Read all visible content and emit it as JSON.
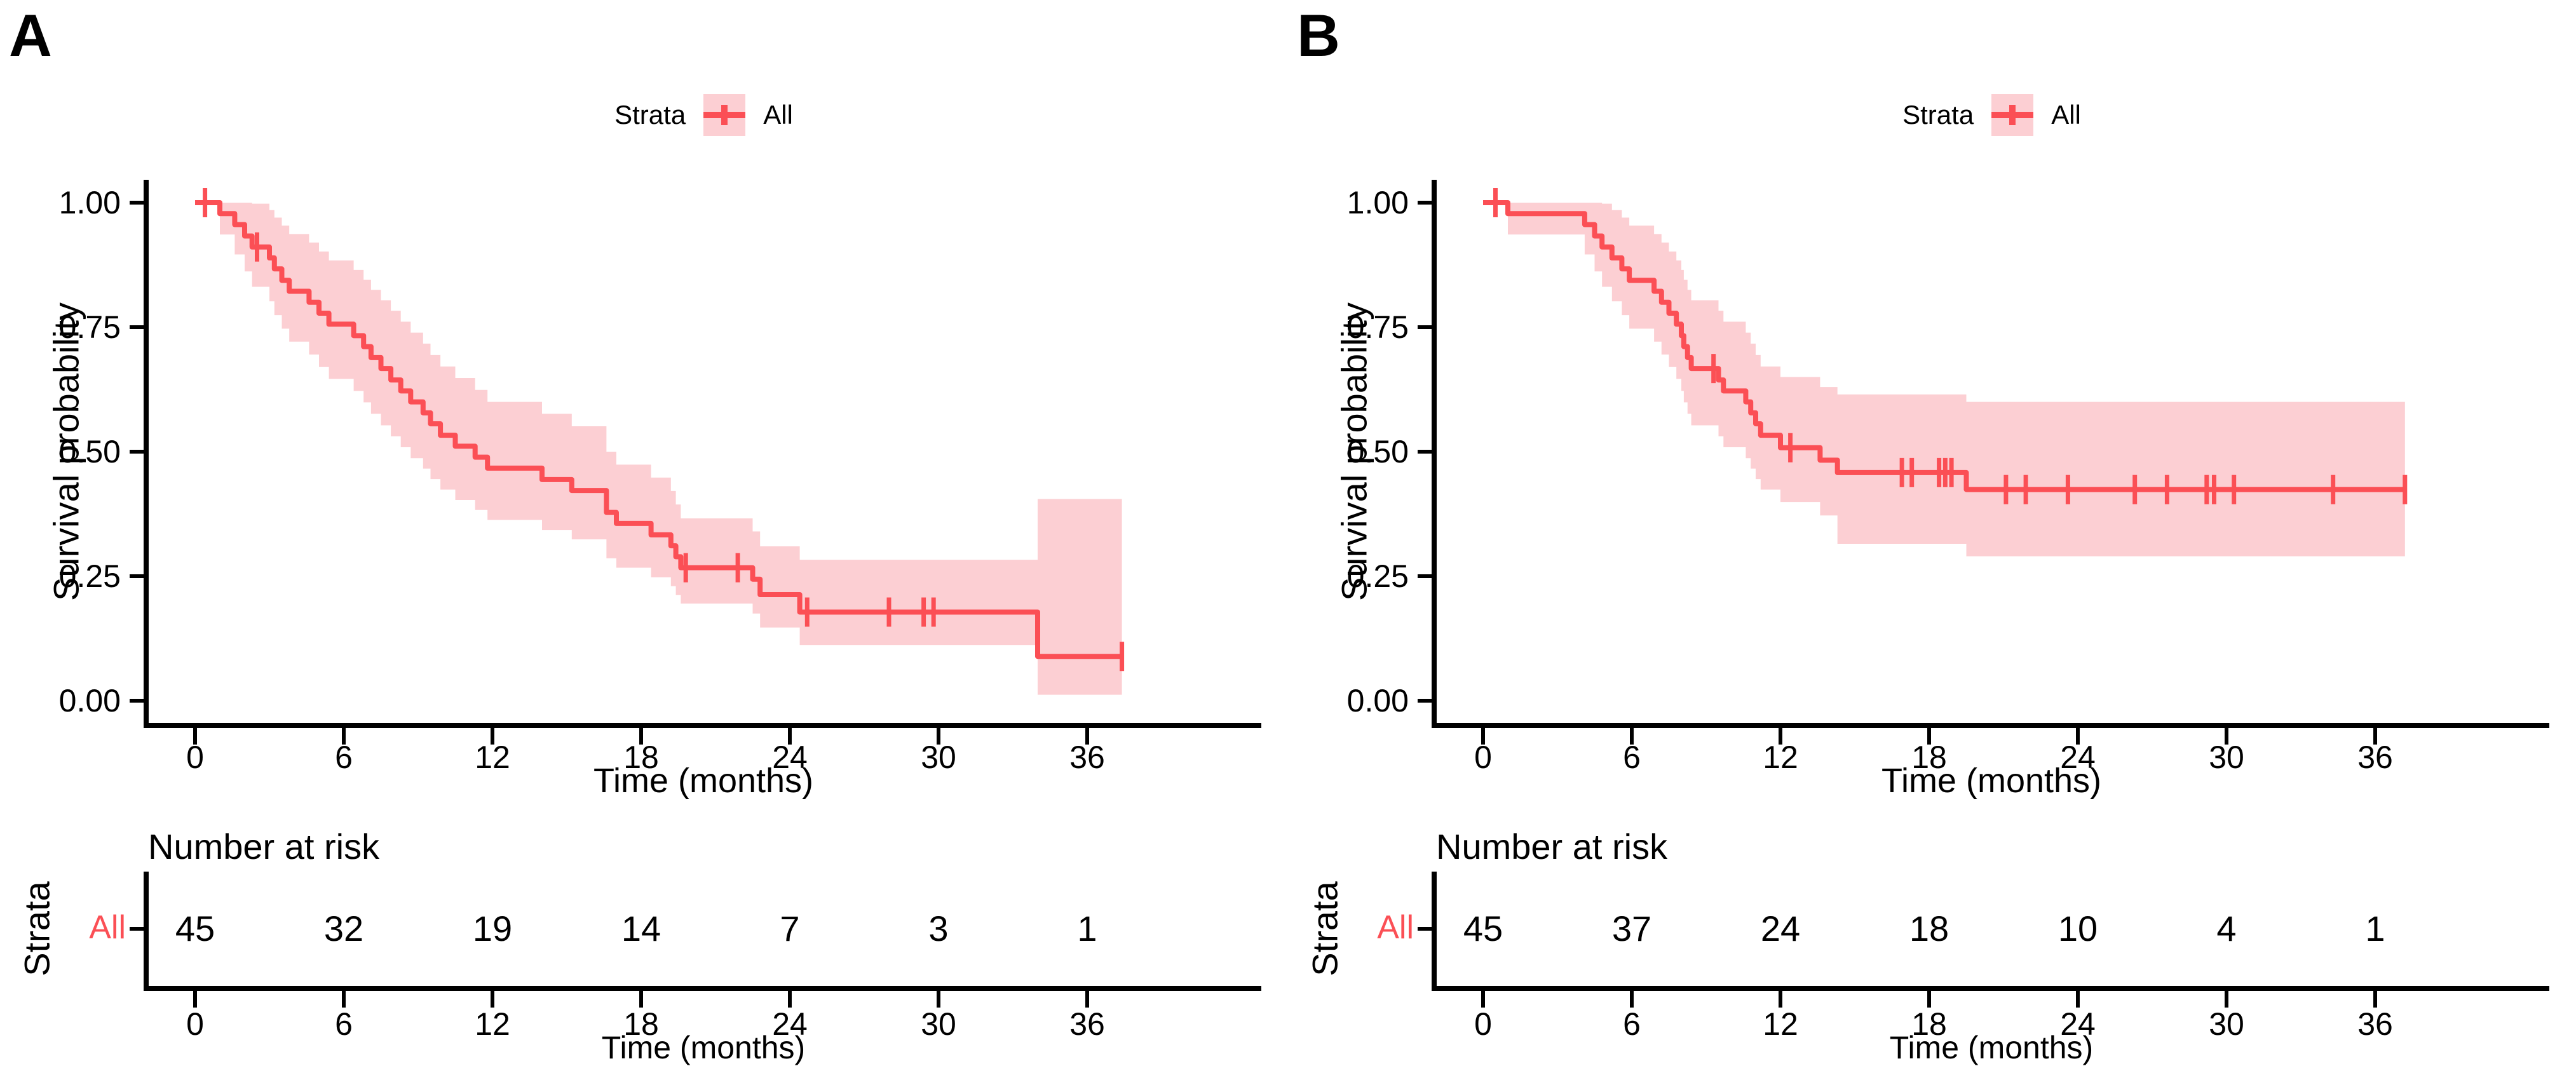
{
  "figure": {
    "colors": {
      "curve_red": "#FB4F55",
      "ribbon_pink": "#FCCFD3",
      "risk_label_red": "#FB4F55",
      "axis_black": "#000000",
      "text_black": "#000000"
    }
  },
  "panels": [
    {
      "label": "A",
      "legend_title": "Strata",
      "legend_item": "All",
      "y_title": "Survival probability",
      "x_title": "Time (months)",
      "y_tick_labels": [
        "1.00",
        "0.75",
        "0.50",
        "0.25",
        "0.00"
      ],
      "x_tick_labels": [
        "0",
        "6",
        "12",
        "18",
        "24",
        "30",
        "36"
      ],
      "risk": {
        "title": "Number at risk",
        "axis_label": "Strata",
        "row_label": "All",
        "counts": [
          "45",
          "32",
          "19",
          "14",
          "7",
          "3",
          "1"
        ],
        "x_title": "Time (months)"
      }
    },
    {
      "label": "B",
      "legend_title": "Strata",
      "legend_item": "All",
      "y_title": "Survival probability",
      "x_title": "Time (months)",
      "y_tick_labels": [
        "1.00",
        "0.75",
        "0.50",
        "0.25",
        "0.00"
      ],
      "x_tick_labels": [
        "0",
        "6",
        "12",
        "18",
        "24",
        "30",
        "36"
      ],
      "risk": {
        "title": "Number at risk",
        "axis_label": "Strata",
        "row_label": "All",
        "counts": [
          "45",
          "37",
          "24",
          "18",
          "10",
          "4",
          "1"
        ],
        "x_title": "Time (months)"
      }
    }
  ],
  "chart_data": [
    {
      "panel": "A",
      "type": "line",
      "subtype": "kaplan_meier_step_with_ci",
      "strata": "All",
      "xlabel": "Time (months)",
      "ylabel": "Survival probability",
      "x_ticks": [
        0,
        6,
        12,
        18,
        24,
        30,
        36
      ],
      "y_ticks": [
        1.0,
        0.75,
        0.5,
        0.25,
        0.0
      ],
      "xlim": [
        0,
        39
      ],
      "ylim": [
        0,
        1
      ],
      "curve_end_time": 37.4,
      "steps_t_s_lo_hi": [
        [
          0.0,
          1.0,
          1.0,
          1.0
        ],
        [
          1.0,
          0.978,
          0.936,
          1.0
        ],
        [
          1.6,
          0.956,
          0.896,
          1.0
        ],
        [
          2.0,
          0.933,
          0.862,
          1.0
        ],
        [
          2.3,
          0.911,
          0.831,
          0.998
        ],
        [
          3.0,
          0.889,
          0.802,
          0.985
        ],
        [
          3.2,
          0.867,
          0.774,
          0.97
        ],
        [
          3.5,
          0.844,
          0.747,
          0.954
        ],
        [
          3.8,
          0.822,
          0.721,
          0.937
        ],
        [
          4.6,
          0.8,
          0.695,
          0.92
        ],
        [
          5.0,
          0.778,
          0.67,
          0.902
        ],
        [
          5.4,
          0.756,
          0.646,
          0.884
        ],
        [
          6.4,
          0.733,
          0.622,
          0.865
        ],
        [
          6.8,
          0.711,
          0.599,
          0.845
        ],
        [
          7.1,
          0.689,
          0.576,
          0.825
        ],
        [
          7.5,
          0.667,
          0.553,
          0.804
        ],
        [
          7.9,
          0.644,
          0.531,
          0.783
        ],
        [
          8.3,
          0.622,
          0.509,
          0.761
        ],
        [
          8.7,
          0.6,
          0.487,
          0.739
        ],
        [
          9.2,
          0.578,
          0.466,
          0.717
        ],
        [
          9.5,
          0.556,
          0.445,
          0.694
        ],
        [
          9.9,
          0.533,
          0.424,
          0.671
        ],
        [
          10.5,
          0.511,
          0.403,
          0.648
        ],
        [
          11.3,
          0.489,
          0.383,
          0.624
        ],
        [
          11.8,
          0.467,
          0.363,
          0.6
        ],
        [
          14.0,
          0.444,
          0.343,
          0.576
        ],
        [
          15.2,
          0.422,
          0.324,
          0.551
        ],
        [
          16.6,
          0.378,
          0.286,
          0.5
        ],
        [
          17.0,
          0.356,
          0.267,
          0.474
        ],
        [
          18.4,
          0.333,
          0.248,
          0.448
        ],
        [
          19.2,
          0.311,
          0.23,
          0.421
        ],
        [
          19.4,
          0.289,
          0.212,
          0.394
        ],
        [
          19.6,
          0.267,
          0.195,
          0.366
        ],
        [
          22.5,
          0.244,
          0.175,
          0.34
        ],
        [
          22.8,
          0.213,
          0.147,
          0.31
        ],
        [
          24.4,
          0.178,
          0.112,
          0.283
        ],
        [
          34.0,
          0.089,
          0.012,
          0.405
        ]
      ],
      "censors_t_s": [
        [
          0.4,
          1.0
        ],
        [
          2.5,
          0.911
        ],
        [
          19.8,
          0.267
        ],
        [
          21.9,
          0.267
        ],
        [
          24.7,
          0.178
        ],
        [
          28.0,
          0.178
        ],
        [
          29.4,
          0.178
        ],
        [
          29.8,
          0.178
        ],
        [
          37.4,
          0.089
        ]
      ],
      "number_at_risk": {
        "times": [
          0,
          6,
          12,
          18,
          24,
          30,
          36
        ],
        "counts": [
          45,
          32,
          19,
          14,
          7,
          3,
          1
        ]
      }
    },
    {
      "panel": "B",
      "type": "line",
      "subtype": "kaplan_meier_step_with_ci",
      "strata": "All",
      "xlabel": "Time (months)",
      "ylabel": "Survival probability",
      "x_ticks": [
        0,
        6,
        12,
        18,
        24,
        30,
        36
      ],
      "y_ticks": [
        1.0,
        0.75,
        0.5,
        0.25,
        0.0
      ],
      "xlim": [
        0,
        39
      ],
      "ylim": [
        0,
        1
      ],
      "curve_end_time": 37.2,
      "steps_t_s_lo_hi": [
        [
          0.0,
          1.0,
          1.0,
          1.0
        ],
        [
          1.0,
          0.978,
          0.936,
          1.0
        ],
        [
          4.1,
          0.956,
          0.896,
          1.0
        ],
        [
          4.5,
          0.933,
          0.862,
          1.0
        ],
        [
          4.8,
          0.911,
          0.831,
          0.998
        ],
        [
          5.2,
          0.889,
          0.802,
          0.985
        ],
        [
          5.6,
          0.867,
          0.774,
          0.97
        ],
        [
          5.9,
          0.844,
          0.747,
          0.954
        ],
        [
          6.9,
          0.822,
          0.721,
          0.937
        ],
        [
          7.2,
          0.8,
          0.695,
          0.92
        ],
        [
          7.5,
          0.778,
          0.67,
          0.902
        ],
        [
          7.8,
          0.756,
          0.646,
          0.884
        ],
        [
          8.0,
          0.733,
          0.622,
          0.865
        ],
        [
          8.1,
          0.711,
          0.599,
          0.845
        ],
        [
          8.25,
          0.689,
          0.576,
          0.825
        ],
        [
          8.4,
          0.667,
          0.553,
          0.804
        ],
        [
          9.5,
          0.644,
          0.531,
          0.783
        ],
        [
          9.7,
          0.622,
          0.509,
          0.761
        ],
        [
          10.6,
          0.6,
          0.487,
          0.739
        ],
        [
          10.8,
          0.578,
          0.466,
          0.717
        ],
        [
          11.0,
          0.556,
          0.445,
          0.694
        ],
        [
          11.2,
          0.533,
          0.424,
          0.671
        ],
        [
          12.0,
          0.508,
          0.399,
          0.65
        ],
        [
          13.6,
          0.483,
          0.372,
          0.63
        ],
        [
          14.3,
          0.458,
          0.315,
          0.615
        ],
        [
          19.5,
          0.424,
          0.29,
          0.6
        ]
      ],
      "censors_t_s": [
        [
          0.5,
          1.0
        ],
        [
          9.3,
          0.667
        ],
        [
          12.4,
          0.508
        ],
        [
          16.9,
          0.458
        ],
        [
          17.3,
          0.458
        ],
        [
          18.4,
          0.458
        ],
        [
          18.65,
          0.458
        ],
        [
          18.9,
          0.458
        ],
        [
          21.1,
          0.424
        ],
        [
          21.9,
          0.424
        ],
        [
          23.6,
          0.424
        ],
        [
          26.3,
          0.424
        ],
        [
          27.6,
          0.424
        ],
        [
          29.2,
          0.424
        ],
        [
          29.5,
          0.424
        ],
        [
          30.3,
          0.424
        ],
        [
          34.3,
          0.424
        ],
        [
          37.2,
          0.424
        ]
      ],
      "number_at_risk": {
        "times": [
          0,
          6,
          12,
          18,
          24,
          30,
          36
        ],
        "counts": [
          45,
          37,
          24,
          18,
          10,
          4,
          1
        ]
      }
    }
  ]
}
